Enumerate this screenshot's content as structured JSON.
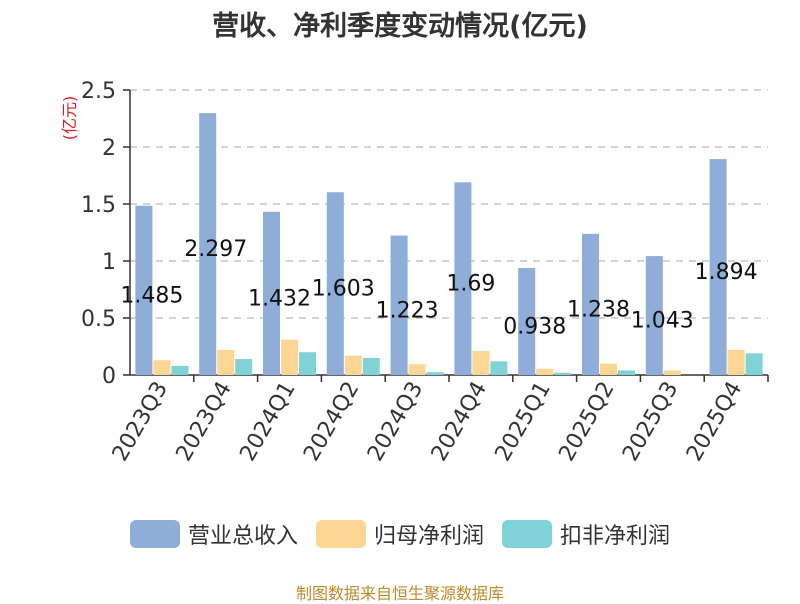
{
  "title": "营收、净利季度变动情况(亿元)",
  "source_note": "制图数据来自恒生聚源数据库",
  "colors": {
    "revenue": "#8eadd8",
    "net_profit": "#fdd694",
    "deducted_profit": "#7fd3d6",
    "unit_label": "#e01b1b",
    "grid": "#bbbbbb",
    "axis": "#333333"
  },
  "chart_data": {
    "type": "bar",
    "title": "营收、净利季度变动情况(亿元)",
    "ylabel": "(亿元)",
    "ylim": [
      0,
      2.5
    ],
    "yticks": [
      "0",
      "0.5",
      "1",
      "1.5",
      "2",
      "2.5"
    ],
    "grid": true,
    "legend_position": "bottom",
    "categories": [
      "2023Q3",
      "2023Q4",
      "2024Q1",
      "2024Q2",
      "2024Q3",
      "2024Q4",
      "2025Q1",
      "2025Q2",
      "2025Q3",
      "2025Q4"
    ],
    "series": [
      {
        "name": "营业总收入",
        "values": [
          1.485,
          2.297,
          1.432,
          1.603,
          1.223,
          1.69,
          0.938,
          1.238,
          1.043,
          1.894
        ],
        "labels": [
          "1.485",
          "2.297",
          "1.432",
          "1.603",
          "1.223",
          "1.69",
          "0.938",
          "1.238",
          "1.043",
          "1.894"
        ]
      },
      {
        "name": "归母净利润",
        "values": [
          0.13,
          0.22,
          0.31,
          0.17,
          0.095,
          0.21,
          0.055,
          0.1,
          0.04,
          0.22
        ]
      },
      {
        "name": "扣非净利润",
        "values": [
          0.08,
          0.14,
          0.2,
          0.15,
          0.025,
          0.12,
          0.02,
          0.04,
          0.0,
          0.19
        ]
      }
    ]
  }
}
